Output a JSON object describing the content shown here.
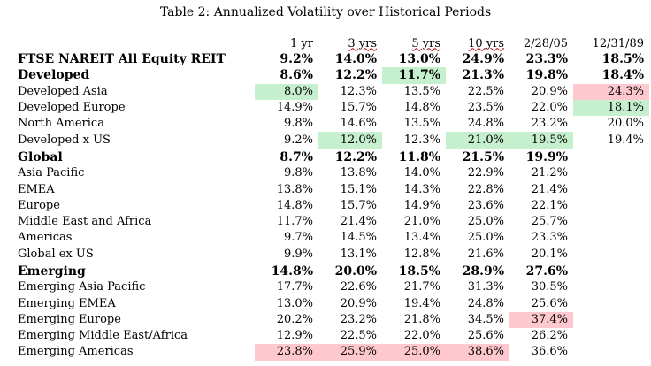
{
  "title": "Table 2: Annualized Volatility over Historical Periods",
  "columns": [
    "1 yr",
    "3 yrs",
    "5 yrs",
    "10 yrs",
    "2/28/05",
    "12/31/89"
  ],
  "rows": [
    {
      "name": "FTSE NAREIT All Equity REIT",
      "values": [
        "9.2%",
        "14.0%",
        "13.0%",
        "24.9%",
        "23.3%",
        "18.5%"
      ],
      "bold": true,
      "highlights": [
        "",
        "",
        "",
        "",
        "",
        ""
      ]
    },
    {
      "name": "Developed",
      "values": [
        "8.6%",
        "12.2%",
        "11.7%",
        "21.3%",
        "19.8%",
        "18.4%"
      ],
      "bold": true,
      "highlights": [
        "",
        "",
        "green",
        "",
        "",
        ""
      ]
    },
    {
      "name": "Developed Asia",
      "values": [
        "8.0%",
        "12.3%",
        "13.5%",
        "22.5%",
        "20.9%",
        "24.3%"
      ],
      "bold": false,
      "highlights": [
        "green",
        "",
        "",
        "",
        "",
        "red"
      ]
    },
    {
      "name": "Developed Europe",
      "values": [
        "14.9%",
        "15.7%",
        "14.8%",
        "23.5%",
        "22.0%",
        "18.1%"
      ],
      "bold": false,
      "highlights": [
        "",
        "",
        "",
        "",
        "",
        "green"
      ]
    },
    {
      "name": "North America",
      "values": [
        "9.8%",
        "14.6%",
        "13.5%",
        "24.8%",
        "23.2%",
        "20.0%"
      ],
      "bold": false,
      "highlights": [
        "",
        "",
        "",
        "",
        "",
        ""
      ]
    },
    {
      "name": "Developed x US",
      "values": [
        "9.2%",
        "12.0%",
        "12.3%",
        "21.0%",
        "19.5%",
        "19.4%"
      ],
      "bold": false,
      "highlights": [
        "",
        "green",
        "",
        "green",
        "green",
        ""
      ]
    },
    {
      "name": "Global",
      "values": [
        "8.7%",
        "12.2%",
        "11.8%",
        "21.5%",
        "19.9%",
        ""
      ],
      "bold": true,
      "sep": true,
      "highlights": [
        "",
        "",
        "",
        "",
        "",
        ""
      ]
    },
    {
      "name": "Asia Pacific",
      "values": [
        "9.8%",
        "13.8%",
        "14.0%",
        "22.9%",
        "21.2%",
        ""
      ],
      "bold": false,
      "highlights": [
        "",
        "",
        "",
        "",
        "",
        ""
      ]
    },
    {
      "name": "EMEA",
      "values": [
        "13.8%",
        "15.1%",
        "14.3%",
        "22.8%",
        "21.4%",
        ""
      ],
      "bold": false,
      "highlights": [
        "",
        "",
        "",
        "",
        "",
        ""
      ]
    },
    {
      "name": "Europe",
      "values": [
        "14.8%",
        "15.7%",
        "14.9%",
        "23.6%",
        "22.1%",
        ""
      ],
      "bold": false,
      "highlights": [
        "",
        "",
        "",
        "",
        "",
        ""
      ]
    },
    {
      "name": "Middle East and Africa",
      "values": [
        "11.7%",
        "21.4%",
        "21.0%",
        "25.0%",
        "25.7%",
        ""
      ],
      "bold": false,
      "highlights": [
        "",
        "",
        "",
        "",
        "",
        ""
      ]
    },
    {
      "name": "Americas",
      "values": [
        "9.7%",
        "14.5%",
        "13.4%",
        "25.0%",
        "23.3%",
        ""
      ],
      "bold": false,
      "highlights": [
        "",
        "",
        "",
        "",
        "",
        ""
      ]
    },
    {
      "name": "Global ex US",
      "values": [
        "9.9%",
        "13.1%",
        "12.8%",
        "21.6%",
        "20.1%",
        ""
      ],
      "bold": false,
      "highlights": [
        "",
        "",
        "",
        "",
        "",
        ""
      ]
    },
    {
      "name": "Emerging",
      "values": [
        "14.8%",
        "20.0%",
        "18.5%",
        "28.9%",
        "27.6%",
        ""
      ],
      "bold": true,
      "sep": true,
      "highlights": [
        "",
        "",
        "",
        "",
        "",
        ""
      ]
    },
    {
      "name": "Emerging Asia Pacific",
      "values": [
        "17.7%",
        "22.6%",
        "21.7%",
        "31.3%",
        "30.5%",
        ""
      ],
      "bold": false,
      "highlights": [
        "",
        "",
        "",
        "",
        "",
        ""
      ]
    },
    {
      "name": "Emerging EMEA",
      "values": [
        "13.0%",
        "20.9%",
        "19.4%",
        "24.8%",
        "25.6%",
        ""
      ],
      "bold": false,
      "highlights": [
        "",
        "",
        "",
        "",
        "",
        ""
      ]
    },
    {
      "name": "Emerging Europe",
      "values": [
        "20.2%",
        "23.2%",
        "21.8%",
        "34.5%",
        "37.4%",
        ""
      ],
      "bold": false,
      "highlights": [
        "",
        "",
        "",
        "",
        "red",
        ""
      ]
    },
    {
      "name": "Emerging Middle East/Africa",
      "values": [
        "12.9%",
        "22.5%",
        "22.0%",
        "25.6%",
        "26.2%",
        ""
      ],
      "bold": false,
      "highlights": [
        "",
        "",
        "",
        "",
        "",
        ""
      ]
    },
    {
      "name": "Emerging Americas",
      "values": [
        "23.8%",
        "25.9%",
        "25.0%",
        "38.6%",
        "36.6%",
        ""
      ],
      "bold": false,
      "highlights": [
        "red",
        "red",
        "red",
        "red",
        "",
        ""
      ]
    }
  ],
  "colors": {
    "green_highlight": "#c6efce",
    "red_highlight": "#ffc7ce"
  }
}
